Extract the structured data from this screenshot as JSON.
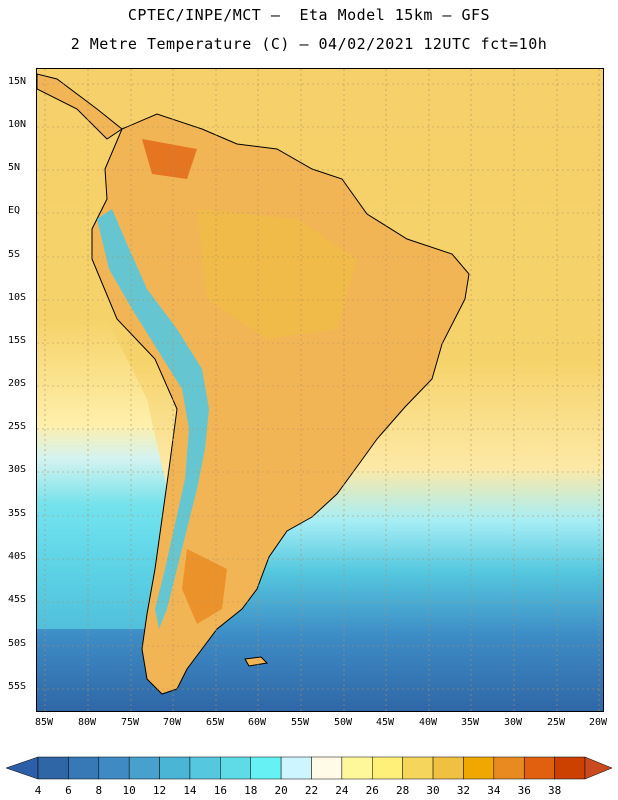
{
  "title_line1": "CPTEC/INPE/MCT –  Eta Model 15km – GFS",
  "title_line2": "2 Metre Temperature (C) – 04/02/2021 12UTC fct=10h",
  "lat_labels": [
    "15N",
    "10N",
    "5N",
    "EQ",
    "5S",
    "10S",
    "15S",
    "20S",
    "25S",
    "30S",
    "35S",
    "40S",
    "45S",
    "50S",
    "55S"
  ],
  "lon_labels": [
    "85W",
    "80W",
    "75W",
    "70W",
    "65W",
    "60W",
    "55W",
    "50W",
    "45W",
    "40W",
    "35W",
    "30W",
    "25W",
    "20W"
  ],
  "colorbar": {
    "labels": [
      "4",
      "6",
      "8",
      "10",
      "12",
      "14",
      "16",
      "18",
      "20",
      "22",
      "24",
      "26",
      "28",
      "30",
      "32",
      "34",
      "36",
      "38"
    ],
    "colors": [
      "#2f66a6",
      "#3778b6",
      "#3f8ac2",
      "#47a1cc",
      "#4bb5d6",
      "#55c8df",
      "#5edbe6",
      "#66f2f5",
      "#ccf5ff",
      "#fffbe6",
      "#fff89b",
      "#fff07a",
      "#f6d65a",
      "#f0c040",
      "#f0a800",
      "#e88a20",
      "#e06010",
      "#cc4000"
    ],
    "low_color": "#2d5fa8",
    "high_color": "#c84a1e"
  },
  "map": {
    "ocean_color": "#f6d36a",
    "land_color": "#f2b556",
    "andes_color": "#55c8df"
  }
}
